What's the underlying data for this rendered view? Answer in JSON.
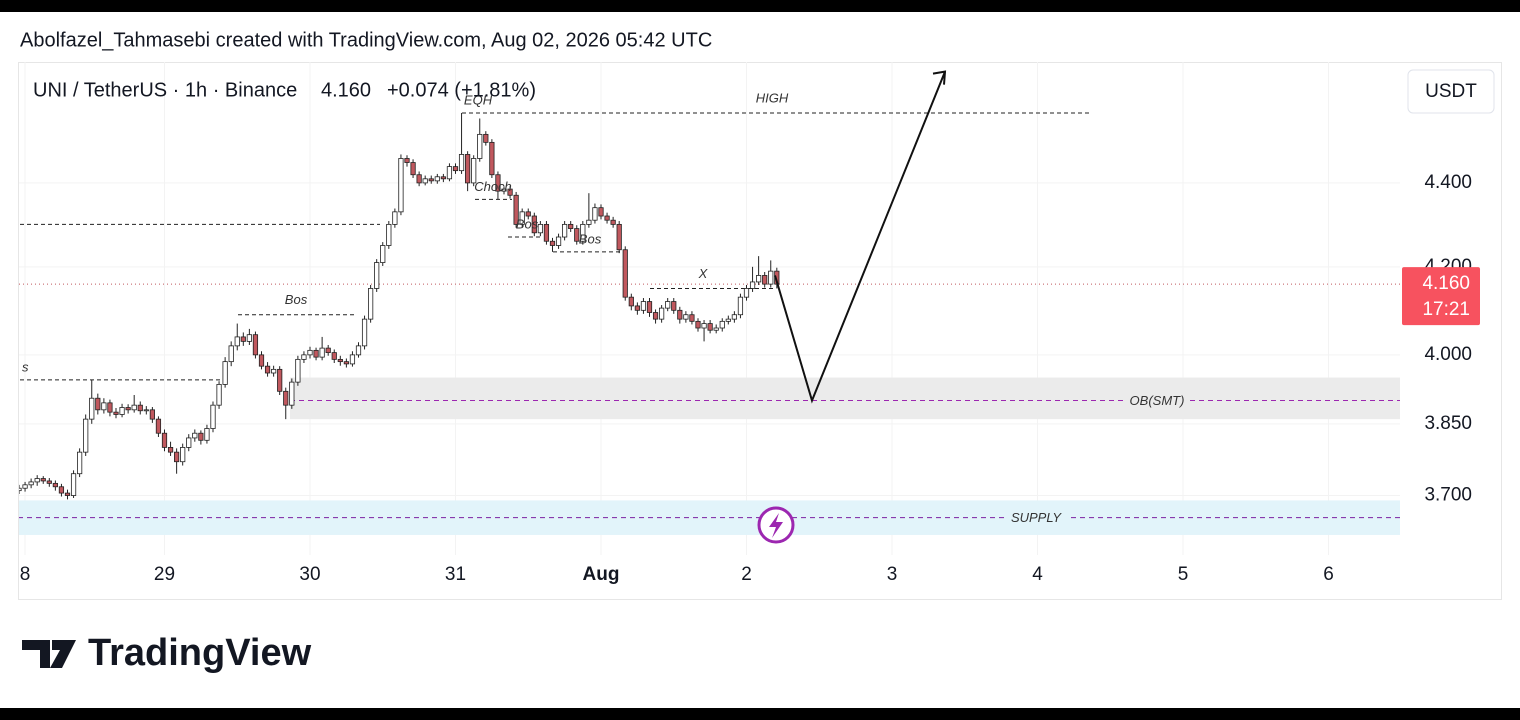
{
  "header": {
    "credit": "Abolfazel_Tahmasebi created with TradingView.com, Aug 02, 2026 05:42 UTC"
  },
  "chart_data": {
    "type": "candlestick",
    "symbol": "UNI / TetherUS · 1h · Binance",
    "change": "+0.074 (+1.81%)",
    "currency": "USDT",
    "last_price": {
      "value": 4.16,
      "label": "4.160"
    },
    "countdown": "17:21",
    "log_scale": true,
    "grid": true,
    "up_color": "#ffffff",
    "down_color": "#c0585e",
    "ylim": [
      3.58,
      4.705
    ],
    "yticks": [
      {
        "value": 3.7,
        "label": "3.700"
      },
      {
        "value": 3.85,
        "label": "3.850"
      },
      {
        "value": 4.0,
        "label": "4.000"
      },
      {
        "value": 4.2,
        "label": "4.200"
      },
      {
        "value": 4.4,
        "label": "4.400"
      }
    ],
    "x_labels": [
      "8",
      "29",
      "30",
      "31",
      "Aug",
      "2",
      "3",
      "4",
      "5",
      "6"
    ],
    "ohlc": [
      [
        3.71,
        3.722,
        3.703,
        3.715
      ],
      [
        3.715,
        3.728,
        3.708,
        3.722
      ],
      [
        3.722,
        3.735,
        3.715,
        3.728
      ],
      [
        3.728,
        3.742,
        3.72,
        3.735
      ],
      [
        3.735,
        3.74,
        3.724,
        3.73
      ],
      [
        3.73,
        3.736,
        3.718,
        3.725
      ],
      [
        3.725,
        3.731,
        3.71,
        3.718
      ],
      [
        3.718,
        3.724,
        3.698,
        3.705
      ],
      [
        3.705,
        3.712,
        3.692,
        3.7
      ],
      [
        3.7,
        3.752,
        3.695,
        3.745
      ],
      [
        3.745,
        3.798,
        3.738,
        3.79
      ],
      [
        3.79,
        3.87,
        3.782,
        3.86
      ],
      [
        3.86,
        3.945,
        3.85,
        3.905
      ],
      [
        3.905,
        3.915,
        3.87,
        3.88
      ],
      [
        3.88,
        3.905,
        3.872,
        3.895
      ],
      [
        3.895,
        3.902,
        3.866,
        3.875
      ],
      [
        3.875,
        3.884,
        3.862,
        3.87
      ],
      [
        3.87,
        3.893,
        3.864,
        3.885
      ],
      [
        3.885,
        3.892,
        3.872,
        3.88
      ],
      [
        3.88,
        3.912,
        3.874,
        3.89
      ],
      [
        3.89,
        3.898,
        3.87,
        3.878
      ],
      [
        3.878,
        3.888,
        3.87,
        3.88
      ],
      [
        3.88,
        3.886,
        3.852,
        3.86
      ],
      [
        3.86,
        3.866,
        3.822,
        3.83
      ],
      [
        3.83,
        3.838,
        3.792,
        3.8
      ],
      [
        3.8,
        3.812,
        3.782,
        3.79
      ],
      [
        3.79,
        3.798,
        3.745,
        3.77
      ],
      [
        3.77,
        3.808,
        3.762,
        3.8
      ],
      [
        3.8,
        3.828,
        3.792,
        3.82
      ],
      [
        3.82,
        3.838,
        3.812,
        3.83
      ],
      [
        3.83,
        3.836,
        3.806,
        3.815
      ],
      [
        3.815,
        3.848,
        3.808,
        3.84
      ],
      [
        3.84,
        3.898,
        3.832,
        3.89
      ],
      [
        3.89,
        3.942,
        3.882,
        3.935
      ],
      [
        3.935,
        3.995,
        3.928,
        3.985
      ],
      [
        3.985,
        4.03,
        3.975,
        4.02
      ],
      [
        4.02,
        4.07,
        4.01,
        4.04
      ],
      [
        4.04,
        4.05,
        4.02,
        4.03
      ],
      [
        4.03,
        4.058,
        4.022,
        4.045
      ],
      [
        4.045,
        4.052,
        3.992,
        4.0
      ],
      [
        4.0,
        4.008,
        3.968,
        3.975
      ],
      [
        3.975,
        3.984,
        3.952,
        3.96
      ],
      [
        3.96,
        3.976,
        3.952,
        3.968
      ],
      [
        3.968,
        3.975,
        3.912,
        3.92
      ],
      [
        3.92,
        3.928,
        3.86,
        3.89
      ],
      [
        3.89,
        3.948,
        3.882,
        3.94
      ],
      [
        3.94,
        3.998,
        3.932,
        3.99
      ],
      [
        3.99,
        4.008,
        3.982,
        4.0
      ],
      [
        4.0,
        4.018,
        3.992,
        4.01
      ],
      [
        4.01,
        4.016,
        3.988,
        3.995
      ],
      [
        3.995,
        4.04,
        3.988,
        4.015
      ],
      [
        4.015,
        4.022,
        3.998,
        4.005
      ],
      [
        4.005,
        4.012,
        3.982,
        3.99
      ],
      [
        3.99,
        3.998,
        3.976,
        3.985
      ],
      [
        3.985,
        3.992,
        3.972,
        3.98
      ],
      [
        3.98,
        4.008,
        3.974,
        4.0
      ],
      [
        4.0,
        4.028,
        3.994,
        4.02
      ],
      [
        4.02,
        4.088,
        4.012,
        4.08
      ],
      [
        4.08,
        4.158,
        4.072,
        4.15
      ],
      [
        4.15,
        4.218,
        4.142,
        4.21
      ],
      [
        4.21,
        4.258,
        4.202,
        4.25
      ],
      [
        4.25,
        4.308,
        4.242,
        4.3
      ],
      [
        4.3,
        4.338,
        4.292,
        4.33
      ],
      [
        4.33,
        4.47,
        4.322,
        4.46
      ],
      [
        4.46,
        4.468,
        4.44,
        4.45
      ],
      [
        4.45,
        4.458,
        4.412,
        4.42
      ],
      [
        4.42,
        4.428,
        4.392,
        4.4
      ],
      [
        4.4,
        4.418,
        4.394,
        4.41
      ],
      [
        4.41,
        4.418,
        4.398,
        4.405
      ],
      [
        4.405,
        4.422,
        4.398,
        4.415
      ],
      [
        4.415,
        4.422,
        4.402,
        4.41
      ],
      [
        4.41,
        4.448,
        4.404,
        4.44
      ],
      [
        4.44,
        4.448,
        4.422,
        4.43
      ],
      [
        4.43,
        4.574,
        4.422,
        4.47
      ],
      [
        4.47,
        4.478,
        4.38,
        4.4
      ],
      [
        4.4,
        4.468,
        4.392,
        4.46
      ],
      [
        4.46,
        4.56,
        4.452,
        4.52
      ],
      [
        4.52,
        4.528,
        4.492,
        4.5
      ],
      [
        4.5,
        4.508,
        4.412,
        4.42
      ],
      [
        4.42,
        4.428,
        4.36,
        4.38
      ],
      [
        4.38,
        4.392,
        4.372,
        4.385
      ],
      [
        4.385,
        4.392,
        4.362,
        4.37
      ],
      [
        4.37,
        4.378,
        4.292,
        4.3
      ],
      [
        4.3,
        4.338,
        4.292,
        4.33
      ],
      [
        4.33,
        4.338,
        4.312,
        4.32
      ],
      [
        4.32,
        4.328,
        4.272,
        4.28
      ],
      [
        4.28,
        4.308,
        4.272,
        4.3
      ],
      [
        4.3,
        4.308,
        4.252,
        4.26
      ],
      [
        4.26,
        4.268,
        4.235,
        4.25
      ],
      [
        4.25,
        4.278,
        4.242,
        4.27
      ],
      [
        4.27,
        4.308,
        4.262,
        4.3
      ],
      [
        4.3,
        4.308,
        4.282,
        4.29
      ],
      [
        4.29,
        4.298,
        4.252,
        4.26
      ],
      [
        4.26,
        4.308,
        4.252,
        4.3
      ],
      [
        4.3,
        4.375,
        4.292,
        4.31
      ],
      [
        4.31,
        4.35,
        4.302,
        4.34
      ],
      [
        4.34,
        4.348,
        4.312,
        4.32
      ],
      [
        4.32,
        4.328,
        4.302,
        4.31
      ],
      [
        4.31,
        4.318,
        4.292,
        4.3
      ],
      [
        4.3,
        4.308,
        4.232,
        4.24
      ],
      [
        4.24,
        4.248,
        4.122,
        4.13
      ],
      [
        4.13,
        4.138,
        4.1,
        4.11
      ],
      [
        4.11,
        4.118,
        4.09,
        4.1
      ],
      [
        4.1,
        4.128,
        4.092,
        4.12
      ],
      [
        4.12,
        4.128,
        4.085,
        4.095
      ],
      [
        4.095,
        4.102,
        4.07,
        4.08
      ],
      [
        4.08,
        4.112,
        4.072,
        4.105
      ],
      [
        4.105,
        4.128,
        4.098,
        4.12
      ],
      [
        4.12,
        4.128,
        4.092,
        4.1
      ],
      [
        4.1,
        4.108,
        4.07,
        4.08
      ],
      [
        4.08,
        4.098,
        4.072,
        4.09
      ],
      [
        4.09,
        4.098,
        4.068,
        4.075
      ],
      [
        4.075,
        4.082,
        4.052,
        4.06
      ],
      [
        4.06,
        4.078,
        4.03,
        4.07
      ],
      [
        4.07,
        4.078,
        4.048,
        4.055
      ],
      [
        4.055,
        4.068,
        4.048,
        4.06
      ],
      [
        4.06,
        4.082,
        4.052,
        4.075
      ],
      [
        4.075,
        4.088,
        4.068,
        4.08
      ],
      [
        4.08,
        4.098,
        4.072,
        4.09
      ],
      [
        4.09,
        4.138,
        4.082,
        4.13
      ],
      [
        4.13,
        4.158,
        4.122,
        4.15
      ],
      [
        4.15,
        4.2,
        4.142,
        4.165
      ],
      [
        4.165,
        4.225,
        4.158,
        4.18
      ],
      [
        4.18,
        4.188,
        4.152,
        4.16
      ],
      [
        4.16,
        4.215,
        4.152,
        4.19
      ],
      [
        4.19,
        4.198,
        4.15,
        4.16
      ]
    ],
    "levels": [
      {
        "label": "HIGH",
        "value": 4.574
      },
      {
        "label": "EQH",
        "value": 4.574
      },
      {
        "label": "Choch",
        "value": 4.36
      },
      {
        "label": "Bos",
        "value": 4.27
      },
      {
        "label": "Bos",
        "value": 4.235
      },
      {
        "label": "X",
        "value": 4.15
      },
      {
        "label": "Bos",
        "value": 4.09
      },
      {
        "label": "s",
        "value": 3.945
      }
    ],
    "unlabeled_levels": [
      4.3
    ],
    "zones": [
      {
        "label": "OB(SMT)",
        "low": 3.86,
        "high": 3.95,
        "line": 3.9,
        "color": "#ebebeb",
        "line_color": "#9c27b0"
      },
      {
        "label": "SUPPLY",
        "low": 3.62,
        "high": 3.69,
        "line": 3.655,
        "color": "#e2f4fa",
        "line_color": "#7b1fa2"
      }
    ],
    "projection": [
      4.18,
      3.9,
      4.68
    ]
  },
  "footer": {
    "brand": "TradingView"
  }
}
